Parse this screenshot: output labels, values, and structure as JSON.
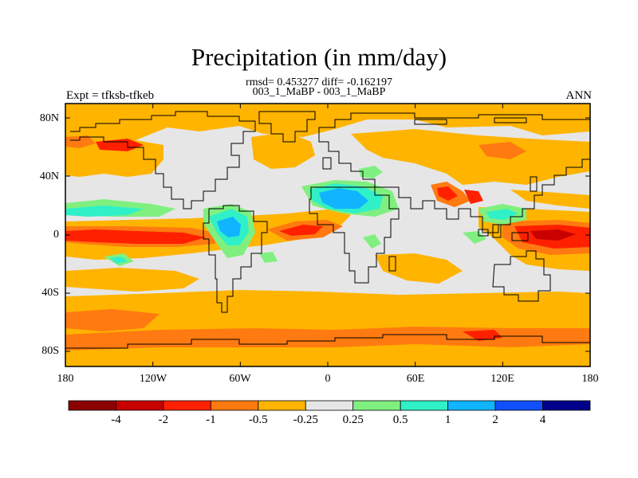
{
  "title": "Precipitation (in mm/day)",
  "subtitle_stats": "rmsd= 0.453277 diff= -0.162197",
  "subtitle_cases": "003_1_MaBP - 003_1_MaBP",
  "left_label": "Expt = tfksb-tfkeb",
  "right_label": "ANN",
  "lat_ticks": [
    "80N",
    "40N",
    "0",
    "40S",
    "80S"
  ],
  "lon_ticks": [
    "180",
    "120W",
    "60W",
    "0",
    "60E",
    "120E",
    "180"
  ],
  "colorbar": {
    "colors": [
      "#8b0000",
      "#c80000",
      "#ff2000",
      "#ff7a10",
      "#ffb400",
      "#e6e6e6",
      "#7ff07f",
      "#30f0c8",
      "#10b4ff",
      "#1050ff",
      "#00008b"
    ],
    "labels": [
      "-4",
      "-2",
      "-1",
      "-0.5",
      "-0.25",
      "0.25",
      "0.5",
      "1",
      "2",
      "4"
    ]
  }
}
